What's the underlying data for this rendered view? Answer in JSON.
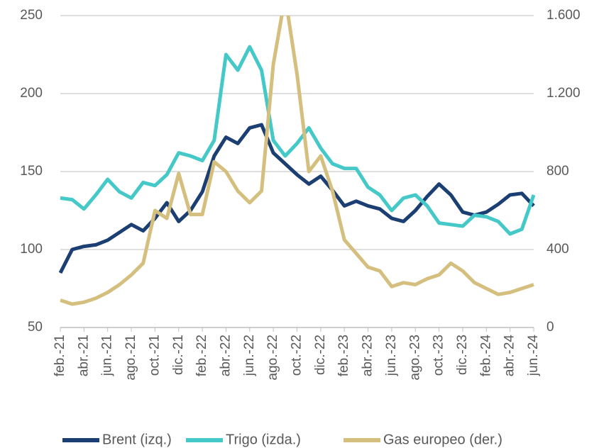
{
  "chart_data": {
    "type": "line",
    "categories": [
      "feb.-21",
      null,
      "abr.-21",
      null,
      "jun.-21",
      null,
      "ago.-21",
      null,
      "oct.-21",
      null,
      "dic.-21",
      null,
      "feb.-22",
      null,
      "abr.-22",
      null,
      "jun.-22",
      null,
      "ago.-22",
      null,
      "oct.-22",
      null,
      "dic.-22",
      null,
      "feb.-23",
      null,
      "abr.-23",
      null,
      "jun.-23",
      null,
      "ago.-23",
      null,
      "oct.-23",
      null,
      "dic.-23",
      null,
      "feb.-24",
      null,
      "abr.-24",
      null,
      "jun.-24"
    ],
    "series": [
      {
        "name": "Brent (izq.)",
        "color": "#1b3f73",
        "values": [
          85,
          100,
          102,
          103,
          106,
          111,
          116,
          112,
          120,
          130,
          118,
          125,
          137,
          160,
          172,
          168,
          178,
          180,
          162,
          155,
          148,
          142,
          147,
          138,
          128,
          131,
          128,
          126,
          120,
          118,
          125,
          134,
          142,
          135,
          124,
          122,
          124,
          129,
          135,
          136,
          128
        ]
      },
      {
        "name": "Trigo (izda.)",
        "color": "#45c8c8",
        "values": [
          133,
          132,
          126,
          135,
          145,
          137,
          133,
          143,
          141,
          148,
          162,
          160,
          157,
          170,
          225,
          215,
          230,
          215,
          170,
          160,
          168,
          178,
          165,
          155,
          152,
          152,
          140,
          135,
          125,
          133,
          135,
          128,
          117,
          116,
          115,
          122,
          121,
          118,
          110,
          113,
          135
        ]
      },
      {
        "name": "Gas europeo (der.)",
        "color": "#d4bf7f",
        "axis": "y2",
        "values": [
          140,
          120,
          130,
          150,
          180,
          220,
          270,
          330,
          600,
          560,
          790,
          580,
          580,
          850,
          800,
          700,
          640,
          700,
          1350,
          1700,
          1300,
          800,
          880,
          700,
          450,
          380,
          310,
          290,
          210,
          230,
          220,
          250,
          270,
          330,
          290,
          230,
          200,
          170,
          180,
          200,
          220
        ]
      }
    ],
    "ylim": [
      50,
      250
    ],
    "yticks": [
      50,
      100,
      150,
      200,
      250
    ],
    "y2lim": [
      0,
      1600
    ],
    "y2ticks": [
      0,
      400,
      800,
      {
        "value": 1200,
        "label": "1.200"
      },
      {
        "value": 1600,
        "label": "1.600"
      }
    ],
    "grid": true,
    "legend": "bottom"
  }
}
